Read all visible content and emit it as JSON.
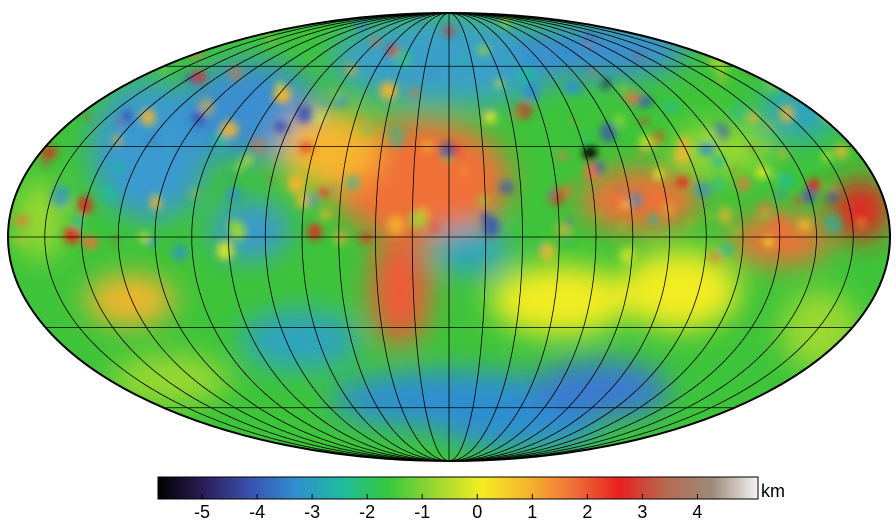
{
  "colorbar": {
    "unit": "km",
    "range": [
      -5.8,
      5.1
    ],
    "ticks": [
      -5,
      -4,
      -3,
      -2,
      -1,
      0,
      1,
      2,
      3,
      4
    ],
    "tick_labels": [
      "-5",
      "-4",
      "-3",
      "-2",
      "-1",
      "0",
      "1",
      "2",
      "3",
      "4"
    ]
  },
  "map": {
    "projection": "mollweide",
    "graticule_meridians_deg": [
      -180,
      -165,
      -150,
      -135,
      -120,
      -105,
      -90,
      -75,
      -60,
      -45,
      -30,
      -15,
      0,
      15,
      30,
      45,
      60,
      75,
      90,
      105,
      120,
      135,
      150,
      165,
      180
    ],
    "graticule_parallels_deg": [
      -60,
      -30,
      0,
      30,
      60
    ]
  },
  "colors": {
    "palette": [
      "#000000",
      "#2a1e5a",
      "#3a52b0",
      "#2f8fd0",
      "#1fbc9c",
      "#36c83c",
      "#9ad832",
      "#f2ec22",
      "#f6b52e",
      "#f07038",
      "#e82020",
      "#b86a52",
      "#9c8a78",
      "#f4f4f4"
    ]
  }
}
